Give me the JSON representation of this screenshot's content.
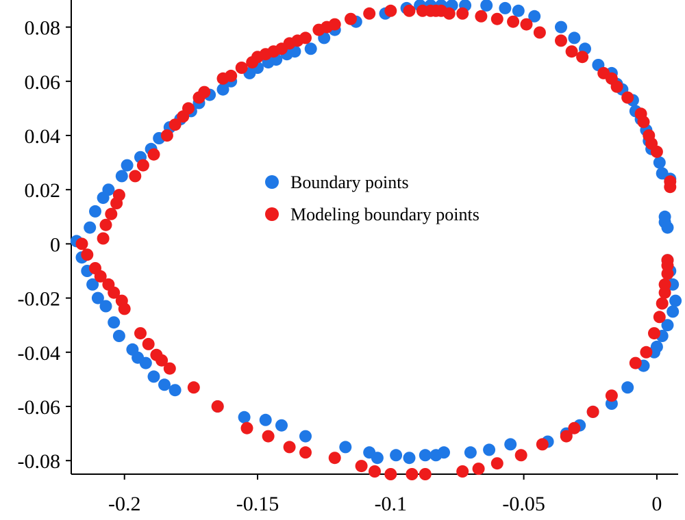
{
  "colors": {
    "boundary": "#1f78e6",
    "modeling": "#ee1c1c"
  },
  "chart_data": {
    "type": "scatter",
    "title": "",
    "xlabel": "",
    "ylabel": "",
    "xlim": [
      -0.22,
      0.008
    ],
    "ylim": [
      -0.085,
      0.09
    ],
    "xticks": [
      -0.2,
      -0.15,
      -0.1,
      -0.05,
      0
    ],
    "xtick_labels": [
      "-0.2",
      "-0.15",
      "-0.1",
      "-0.05",
      "0"
    ],
    "yticks": [
      0.08,
      0.06,
      0.04,
      0.02,
      0,
      -0.02,
      -0.04,
      -0.06,
      -0.08
    ],
    "ytick_labels": [
      "0.08",
      "0.06",
      "0.04",
      "0.02",
      "0",
      "-0.02",
      "-0.04",
      "-0.06",
      "-0.08"
    ],
    "grid": false,
    "legend_position": "center",
    "series": [
      {
        "name": "Boundary points",
        "color": "#1f78e6",
        "points": [
          [
            -0.218,
            0.001
          ],
          [
            -0.216,
            -0.005
          ],
          [
            -0.214,
            -0.01
          ],
          [
            -0.213,
            0.006
          ],
          [
            -0.212,
            -0.015
          ],
          [
            -0.211,
            0.012
          ],
          [
            -0.21,
            -0.02
          ],
          [
            -0.208,
            0.017
          ],
          [
            -0.207,
            -0.023
          ],
          [
            -0.206,
            0.02
          ],
          [
            -0.204,
            -0.029
          ],
          [
            -0.202,
            -0.034
          ],
          [
            -0.201,
            0.025
          ],
          [
            -0.199,
            0.029
          ],
          [
            -0.197,
            -0.039
          ],
          [
            -0.195,
            -0.042
          ],
          [
            -0.194,
            0.032
          ],
          [
            -0.192,
            -0.044
          ],
          [
            -0.19,
            0.035
          ],
          [
            -0.189,
            -0.049
          ],
          [
            -0.187,
            0.039
          ],
          [
            -0.185,
            -0.052
          ],
          [
            -0.183,
            0.043
          ],
          [
            -0.181,
            -0.054
          ],
          [
            -0.179,
            0.046
          ],
          [
            -0.175,
            0.049
          ],
          [
            -0.172,
            0.052
          ],
          [
            -0.168,
            0.055
          ],
          [
            -0.165,
            -0.06
          ],
          [
            -0.163,
            0.057
          ],
          [
            -0.16,
            0.06
          ],
          [
            -0.155,
            -0.064
          ],
          [
            -0.153,
            0.063
          ],
          [
            -0.15,
            0.065
          ],
          [
            -0.147,
            -0.065
          ],
          [
            -0.146,
            0.067
          ],
          [
            -0.143,
            0.068
          ],
          [
            -0.141,
            -0.067
          ],
          [
            -0.139,
            0.07
          ],
          [
            -0.136,
            0.071
          ],
          [
            -0.132,
            -0.071
          ],
          [
            -0.13,
            0.072
          ],
          [
            -0.125,
            0.076
          ],
          [
            -0.121,
            0.079
          ],
          [
            -0.117,
            -0.075
          ],
          [
            -0.113,
            0.082
          ],
          [
            -0.108,
            -0.077
          ],
          [
            -0.105,
            -0.079
          ],
          [
            -0.102,
            0.085
          ],
          [
            -0.098,
            -0.078
          ],
          [
            -0.094,
            0.087
          ],
          [
            -0.093,
            -0.079
          ],
          [
            -0.089,
            0.088
          ],
          [
            -0.087,
            -0.078
          ],
          [
            -0.085,
            0.088
          ],
          [
            -0.083,
            -0.078
          ],
          [
            -0.081,
            0.088
          ],
          [
            -0.08,
            -0.077
          ],
          [
            -0.077,
            0.088
          ],
          [
            -0.072,
            0.088
          ],
          [
            -0.07,
            -0.077
          ],
          [
            -0.064,
            0.088
          ],
          [
            -0.063,
            -0.076
          ],
          [
            -0.057,
            0.087
          ],
          [
            -0.055,
            -0.074
          ],
          [
            -0.052,
            0.086
          ],
          [
            -0.046,
            0.084
          ],
          [
            -0.041,
            -0.073
          ],
          [
            -0.036,
            0.08
          ],
          [
            -0.034,
            -0.07
          ],
          [
            -0.031,
            0.076
          ],
          [
            -0.029,
            -0.067
          ],
          [
            -0.027,
            0.072
          ],
          [
            -0.024,
            -0.062
          ],
          [
            -0.022,
            0.066
          ],
          [
            -0.017,
            0.063
          ],
          [
            -0.017,
            -0.059
          ],
          [
            -0.015,
            0.059
          ],
          [
            -0.013,
            0.057
          ],
          [
            -0.011,
            -0.053
          ],
          [
            -0.009,
            0.053
          ],
          [
            -0.008,
            0.049
          ],
          [
            -0.006,
            0.046
          ],
          [
            -0.005,
            -0.045
          ],
          [
            -0.004,
            0.042
          ],
          [
            -0.003,
            0.038
          ],
          [
            -0.002,
            0.035
          ],
          [
            -0.001,
            -0.04
          ],
          [
            0.0,
            -0.038
          ],
          [
            0.001,
            0.03
          ],
          [
            0.002,
            0.026
          ],
          [
            0.002,
            -0.034
          ],
          [
            0.003,
            0.01
          ],
          [
            0.003,
            0.008
          ],
          [
            0.004,
            -0.03
          ],
          [
            0.005,
            0.024
          ],
          [
            0.005,
            -0.01
          ],
          [
            0.006,
            -0.025
          ],
          [
            0.007,
            -0.021
          ],
          [
            0.006,
            -0.015
          ],
          [
            0.004,
            -0.006
          ],
          [
            0.004,
            0.006
          ]
        ]
      },
      {
        "name": "Modeling boundary points",
        "color": "#ee1c1c",
        "points": [
          [
            -0.216,
            0.0
          ],
          [
            -0.214,
            -0.004
          ],
          [
            -0.211,
            -0.009
          ],
          [
            -0.209,
            -0.012
          ],
          [
            -0.208,
            0.002
          ],
          [
            -0.207,
            0.007
          ],
          [
            -0.206,
            -0.015
          ],
          [
            -0.205,
            0.011
          ],
          [
            -0.204,
            -0.018
          ],
          [
            -0.203,
            0.015
          ],
          [
            -0.202,
            0.018
          ],
          [
            -0.201,
            -0.021
          ],
          [
            -0.2,
            -0.024
          ],
          [
            -0.196,
            0.025
          ],
          [
            -0.194,
            -0.033
          ],
          [
            -0.193,
            0.029
          ],
          [
            -0.191,
            -0.037
          ],
          [
            -0.189,
            0.033
          ],
          [
            -0.188,
            -0.041
          ],
          [
            -0.186,
            -0.043
          ],
          [
            -0.184,
            0.04
          ],
          [
            -0.183,
            -0.046
          ],
          [
            -0.181,
            0.044
          ],
          [
            -0.178,
            0.047
          ],
          [
            -0.176,
            0.05
          ],
          [
            -0.174,
            -0.053
          ],
          [
            -0.172,
            0.054
          ],
          [
            -0.17,
            0.056
          ],
          [
            -0.165,
            -0.06
          ],
          [
            -0.163,
            0.061
          ],
          [
            -0.16,
            0.062
          ],
          [
            -0.156,
            0.065
          ],
          [
            -0.154,
            -0.068
          ],
          [
            -0.152,
            0.067
          ],
          [
            -0.15,
            0.069
          ],
          [
            -0.147,
            0.07
          ],
          [
            -0.146,
            -0.071
          ],
          [
            -0.144,
            0.071
          ],
          [
            -0.141,
            0.072
          ],
          [
            -0.138,
            -0.075
          ],
          [
            -0.138,
            0.074
          ],
          [
            -0.135,
            0.075
          ],
          [
            -0.132,
            0.076
          ],
          [
            -0.132,
            -0.077
          ],
          [
            -0.127,
            0.079
          ],
          [
            -0.124,
            0.08
          ],
          [
            -0.121,
            -0.079
          ],
          [
            -0.121,
            0.081
          ],
          [
            -0.115,
            0.083
          ],
          [
            -0.111,
            -0.082
          ],
          [
            -0.108,
            0.085
          ],
          [
            -0.106,
            -0.084
          ],
          [
            -0.1,
            0.086
          ],
          [
            -0.1,
            -0.085
          ],
          [
            -0.093,
            0.086
          ],
          [
            -0.092,
            -0.085
          ],
          [
            -0.088,
            0.086
          ],
          [
            -0.087,
            -0.085
          ],
          [
            -0.085,
            0.086
          ],
          [
            -0.083,
            0.086
          ],
          [
            -0.081,
            0.086
          ],
          [
            -0.078,
            0.085
          ],
          [
            -0.073,
            0.085
          ],
          [
            -0.073,
            -0.084
          ],
          [
            -0.067,
            -0.083
          ],
          [
            -0.066,
            0.084
          ],
          [
            -0.06,
            0.083
          ],
          [
            -0.06,
            -0.081
          ],
          [
            -0.054,
            0.082
          ],
          [
            -0.051,
            -0.078
          ],
          [
            -0.049,
            0.081
          ],
          [
            -0.044,
            0.078
          ],
          [
            -0.043,
            -0.074
          ],
          [
            -0.036,
            0.075
          ],
          [
            -0.034,
            -0.071
          ],
          [
            -0.032,
            0.071
          ],
          [
            -0.031,
            -0.068
          ],
          [
            -0.028,
            0.069
          ],
          [
            -0.024,
            -0.062
          ],
          [
            -0.02,
            0.063
          ],
          [
            -0.017,
            -0.056
          ],
          [
            -0.017,
            0.061
          ],
          [
            -0.015,
            0.058
          ],
          [
            -0.011,
            0.054
          ],
          [
            -0.008,
            -0.044
          ],
          [
            -0.006,
            0.048
          ],
          [
            -0.005,
            0.045
          ],
          [
            -0.004,
            -0.04
          ],
          [
            -0.003,
            0.04
          ],
          [
            -0.002,
            0.037
          ],
          [
            -0.001,
            -0.033
          ],
          [
            0.0,
            0.034
          ],
          [
            0.001,
            -0.027
          ],
          [
            0.002,
            -0.022
          ],
          [
            0.003,
            -0.018
          ],
          [
            0.003,
            -0.015
          ],
          [
            0.004,
            -0.011
          ],
          [
            0.004,
            -0.008
          ],
          [
            0.004,
            -0.006
          ],
          [
            0.005,
            0.021
          ],
          [
            0.005,
            0.023
          ]
        ]
      }
    ]
  }
}
